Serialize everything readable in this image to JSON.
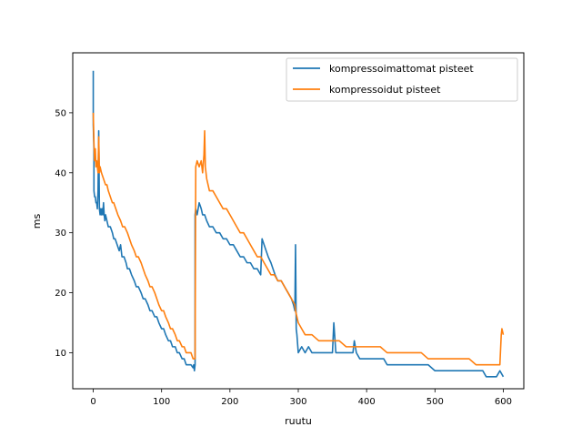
{
  "chart_data": {
    "type": "line",
    "title": "",
    "xlabel": "ruutu",
    "ylabel": "ms",
    "xlim": [
      -30,
      630
    ],
    "ylim": [
      4,
      60
    ],
    "xticks": [
      0,
      100,
      200,
      300,
      400,
      500,
      600
    ],
    "yticks": [
      10,
      20,
      30,
      40,
      50
    ],
    "grid": false,
    "legend_position": "top-right",
    "series": [
      {
        "name": "kompressoimattomat pisteet",
        "color": "#1f77b4",
        "x": [
          0,
          0,
          1,
          1,
          2,
          3,
          4,
          5,
          6,
          7,
          8,
          9,
          10,
          11,
          12,
          13,
          14,
          15,
          16,
          17,
          18,
          20,
          22,
          25,
          28,
          30,
          32,
          35,
          38,
          40,
          42,
          45,
          48,
          50,
          53,
          56,
          60,
          63,
          66,
          70,
          73,
          76,
          80,
          83,
          86,
          90,
          93,
          96,
          100,
          103,
          106,
          110,
          113,
          116,
          120,
          123,
          126,
          130,
          133,
          136,
          140,
          143,
          146,
          147,
          148,
          149,
          149,
          150,
          152,
          155,
          158,
          160,
          163,
          166,
          170,
          175,
          180,
          185,
          190,
          195,
          200,
          205,
          210,
          215,
          220,
          225,
          230,
          235,
          240,
          245,
          247,
          250,
          253,
          256,
          260,
          263,
          266,
          270,
          275,
          280,
          285,
          290,
          293,
          295,
          296,
          297,
          298,
          300,
          305,
          310,
          315,
          320,
          325,
          330,
          335,
          340,
          345,
          350,
          352,
          355,
          360,
          365,
          370,
          375,
          380,
          382,
          385,
          390,
          395,
          400,
          410,
          420,
          425,
          430,
          440,
          445,
          450,
          460,
          470,
          480,
          490,
          500,
          510,
          520,
          530,
          540,
          550,
          555,
          560,
          570,
          575,
          580,
          590,
          595,
          600
        ],
        "y": [
          57,
          48,
          44,
          37,
          36,
          36,
          35,
          35,
          34,
          37,
          47,
          34,
          33,
          34,
          33,
          34,
          33,
          35,
          33,
          32,
          33,
          32,
          31,
          31,
          30,
          29,
          29,
          28,
          27,
          28,
          26,
          26,
          25,
          24,
          24,
          23,
          22,
          21,
          21,
          20,
          19,
          19,
          18,
          17,
          17,
          16,
          16,
          15,
          14,
          14,
          13,
          12,
          12,
          11,
          11,
          10,
          10,
          9,
          9,
          8,
          8,
          8,
          7.5,
          8,
          7,
          8,
          33,
          34,
          33,
          35,
          34,
          33,
          33,
          32,
          31,
          31,
          30,
          30,
          29,
          29,
          28,
          28,
          27,
          26,
          26,
          25,
          25,
          24,
          24,
          23,
          29,
          28,
          27,
          26,
          25,
          24,
          23,
          22,
          22,
          21,
          20,
          19,
          18,
          17,
          28,
          14,
          13,
          10,
          11,
          10,
          11,
          10,
          10,
          10,
          10,
          10,
          10,
          10,
          15,
          10,
          10,
          10,
          10,
          10,
          10,
          12,
          10,
          9,
          9,
          9,
          9,
          9,
          9,
          8,
          8,
          8,
          8,
          8,
          8,
          8,
          8,
          7,
          7,
          7,
          7,
          7,
          7,
          7,
          7,
          7,
          6,
          6,
          6,
          7,
          6
        ]
      },
      {
        "name": "kompressoidut pisteet",
        "color": "#ff7f0e",
        "x": [
          0,
          1,
          2,
          3,
          4,
          5,
          6,
          7,
          8,
          9,
          10,
          12,
          15,
          18,
          20,
          22,
          25,
          28,
          30,
          33,
          36,
          40,
          43,
          46,
          50,
          53,
          56,
          60,
          63,
          66,
          70,
          73,
          76,
          80,
          83,
          86,
          90,
          93,
          96,
          100,
          103,
          106,
          110,
          113,
          116,
          120,
          123,
          126,
          130,
          133,
          136,
          140,
          143,
          146,
          148,
          149,
          150,
          152,
          155,
          158,
          160,
          162,
          163,
          164,
          165,
          166,
          168,
          170,
          175,
          180,
          185,
          190,
          195,
          200,
          205,
          210,
          215,
          220,
          225,
          230,
          235,
          240,
          245,
          250,
          255,
          260,
          265,
          270,
          275,
          280,
          285,
          290,
          295,
          296,
          300,
          305,
          310,
          320,
          330,
          340,
          350,
          360,
          370,
          380,
          390,
          400,
          410,
          420,
          430,
          440,
          450,
          460,
          470,
          480,
          490,
          500,
          510,
          520,
          530,
          540,
          550,
          560,
          570,
          580,
          590,
          595,
          597,
          598,
          600
        ],
        "y": [
          50,
          45,
          42,
          44,
          41,
          42,
          41,
          40,
          46,
          40,
          41,
          40,
          39,
          38,
          38,
          37,
          36,
          35,
          35,
          34,
          33,
          32,
          31,
          31,
          30,
          29,
          28,
          27,
          26,
          26,
          25,
          24,
          23,
          22,
          21,
          21,
          20,
          19,
          18,
          17,
          17,
          16,
          15,
          14,
          14,
          13,
          12,
          12,
          11,
          11,
          10,
          10,
          10,
          9,
          9,
          9,
          41,
          42,
          41,
          42,
          40,
          43,
          47,
          41,
          40,
          39,
          38,
          37,
          37,
          36,
          35,
          34,
          34,
          33,
          32,
          31,
          30,
          30,
          29,
          28,
          27,
          26,
          26,
          25,
          24,
          23,
          23,
          22,
          22,
          21,
          20,
          19,
          18,
          17,
          15,
          14,
          13,
          13,
          12,
          12,
          12,
          12,
          11,
          11,
          11,
          11,
          11,
          11,
          10,
          10,
          10,
          10,
          10,
          10,
          9,
          9,
          9,
          9,
          9,
          9,
          9,
          8,
          8,
          8,
          8,
          8,
          13,
          14,
          13
        ]
      }
    ]
  }
}
